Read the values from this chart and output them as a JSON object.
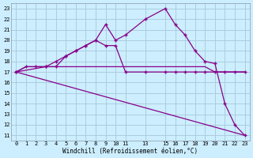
{
  "xlabel": "Windchill (Refroidissement éolien,°C)",
  "bg_color": "#cceeff",
  "grid_color": "#aaccdd",
  "line_color": "#880088",
  "xlim": [
    -0.5,
    23.5
  ],
  "ylim": [
    10.5,
    23.5
  ],
  "yticks": [
    11,
    12,
    13,
    14,
    15,
    16,
    17,
    18,
    19,
    20,
    21,
    22,
    23
  ],
  "xticks": [
    0,
    1,
    2,
    3,
    4,
    5,
    6,
    7,
    8,
    9,
    10,
    11,
    13,
    15,
    16,
    17,
    18,
    19,
    20,
    21,
    22,
    23
  ],
  "xtick_labels": [
    "0",
    "1",
    "2",
    "3",
    "4",
    "5",
    "6",
    "7",
    "8",
    "9",
    "10",
    "11",
    "13",
    "15",
    "16",
    "17",
    "18",
    "19",
    "20",
    "21",
    "22",
    "23"
  ],
  "curves": [
    {
      "x": [
        0,
        1,
        2,
        3,
        4,
        5,
        6,
        7,
        8,
        9,
        10,
        11,
        13,
        15,
        16,
        17,
        18,
        19,
        20,
        21,
        22,
        23
      ],
      "y": [
        17,
        17.5,
        17.5,
        17.5,
        18.0,
        18.5,
        19.0,
        19.5,
        20.0,
        21.5,
        20.0,
        20.5,
        22.0,
        23.0,
        21.5,
        20.5,
        19.0,
        18.0,
        17.8,
        14.0,
        12.0,
        11.0
      ],
      "marker": true
    },
    {
      "x": [
        0,
        1,
        2,
        3,
        4,
        5,
        6,
        7,
        8,
        9,
        10,
        11,
        13,
        15,
        16,
        17,
        18,
        19,
        20,
        21,
        22,
        23
      ],
      "y": [
        17,
        17.5,
        17.5,
        17.5,
        17.5,
        17.5,
        17.5,
        17.5,
        17.5,
        17.5,
        17.5,
        17.5,
        17.5,
        17.5,
        17.5,
        17.5,
        17.5,
        17.5,
        17.0,
        17.0,
        17.0,
        17.0
      ],
      "marker": false
    },
    {
      "x": [
        0,
        3,
        4,
        5,
        6,
        7,
        8,
        9,
        10,
        11,
        13,
        15,
        16,
        17,
        18,
        19,
        20,
        21,
        22,
        23
      ],
      "y": [
        17,
        17.5,
        17.5,
        18.5,
        19.0,
        19.5,
        20.0,
        19.5,
        19.5,
        17.0,
        17.0,
        17.0,
        17.0,
        17.0,
        17.0,
        17.0,
        17.0,
        17.0,
        17.0,
        17.0
      ],
      "marker": true
    },
    {
      "x": [
        0,
        23
      ],
      "y": [
        17,
        11.0
      ],
      "marker": false
    }
  ]
}
